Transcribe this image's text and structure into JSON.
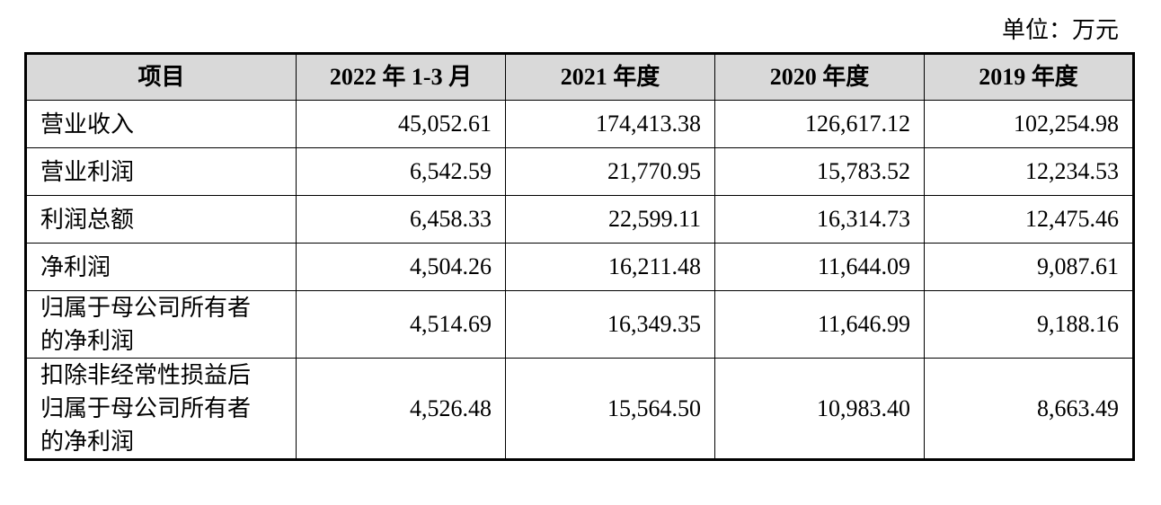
{
  "unit": "单位：万元",
  "table": {
    "header": [
      "项目",
      "2022 年 1-3 月",
      "2021 年度",
      "2020 年度",
      "2019 年度"
    ],
    "rows": [
      [
        "营业收入",
        "45,052.61",
        "174,413.38",
        "126,617.12",
        "102,254.98"
      ],
      [
        "营业利润",
        "6,542.59",
        "21,770.95",
        "15,783.52",
        "12,234.53"
      ],
      [
        "利润总额",
        "6,458.33",
        "22,599.11",
        "16,314.73",
        "12,475.46"
      ],
      [
        "净利润",
        "4,504.26",
        "16,211.48",
        "11,644.09",
        "9,087.61"
      ],
      [
        "归属于母公司所有者的净利润",
        "4,514.69",
        "16,349.35",
        "11,646.99",
        "9,188.16"
      ],
      [
        "扣除非经常性损益后归属于母公司所有者的净利润",
        "4,526.48",
        "15,564.50",
        "10,983.40",
        "8,663.49"
      ]
    ]
  }
}
